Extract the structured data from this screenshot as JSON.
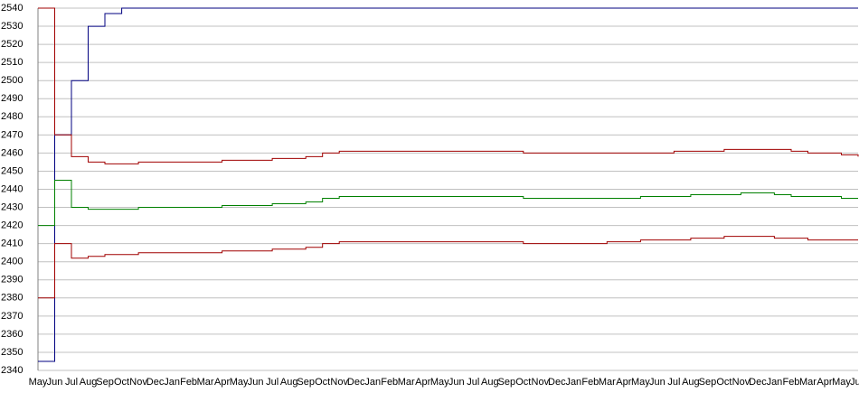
{
  "chart_data": {
    "type": "line",
    "categories": [
      "May",
      "Jun",
      "Jul",
      "Aug",
      "Sep",
      "Oct",
      "Nov",
      "Dec",
      "Jan",
      "Feb",
      "Mar",
      "Apr",
      "May",
      "Jun",
      "Jul",
      "Aug",
      "Sep",
      "Oct",
      "Nov",
      "Dec",
      "Jan",
      "Feb",
      "Mar",
      "Apr",
      "May",
      "Jun",
      "Jul",
      "Aug",
      "Sep",
      "Oct",
      "Nov",
      "Dec",
      "Jan",
      "Feb",
      "Mar",
      "Apr",
      "May",
      "Jun",
      "Jul",
      "Aug",
      "Sep",
      "Oct",
      "Nov",
      "Dec",
      "Jan",
      "Feb",
      "Mar",
      "Apr",
      "May",
      "Jun"
    ],
    "series": [
      {
        "color": "#000080",
        "values": [
          2345,
          2470,
          2500,
          2530,
          2537,
          2540,
          2540,
          2540,
          2540,
          2540,
          2540,
          2540,
          2540,
          2540,
          2540,
          2540,
          2540,
          2540,
          2540,
          2540,
          2540,
          2540,
          2540,
          2540,
          2540,
          2540,
          2540,
          2540,
          2540,
          2540,
          2540,
          2540,
          2540,
          2540,
          2540,
          2540,
          2540,
          2540,
          2540,
          2540,
          2540,
          2540,
          2540,
          2540,
          2540,
          2540,
          2540,
          2540,
          2540,
          2540
        ]
      },
      {
        "color": "#a00000",
        "values": [
          2540,
          2470,
          2458,
          2455,
          2454,
          2454,
          2455,
          2455,
          2455,
          2455,
          2455,
          2456,
          2456,
          2456,
          2457,
          2457,
          2458,
          2460,
          2461,
          2461,
          2461,
          2461,
          2461,
          2461,
          2461,
          2461,
          2461,
          2461,
          2461,
          2460,
          2460,
          2460,
          2460,
          2460,
          2460,
          2460,
          2460,
          2460,
          2461,
          2461,
          2461,
          2462,
          2462,
          2462,
          2462,
          2461,
          2460,
          2460,
          2459,
          2458
        ]
      },
      {
        "color": "#008000",
        "values": [
          2420,
          2445,
          2430,
          2429,
          2429,
          2429,
          2430,
          2430,
          2430,
          2430,
          2430,
          2431,
          2431,
          2431,
          2432,
          2432,
          2433,
          2435,
          2436,
          2436,
          2436,
          2436,
          2436,
          2436,
          2436,
          2436,
          2436,
          2436,
          2436,
          2435,
          2435,
          2435,
          2435,
          2435,
          2435,
          2435,
          2436,
          2436,
          2436,
          2437,
          2437,
          2437,
          2438,
          2438,
          2437,
          2436,
          2436,
          2436,
          2435,
          2435
        ]
      },
      {
        "color": "#a00000",
        "values": [
          2380,
          2410,
          2402,
          2403,
          2404,
          2404,
          2405,
          2405,
          2405,
          2405,
          2405,
          2406,
          2406,
          2406,
          2407,
          2407,
          2408,
          2410,
          2411,
          2411,
          2411,
          2411,
          2411,
          2411,
          2411,
          2411,
          2411,
          2411,
          2411,
          2410,
          2410,
          2410,
          2410,
          2410,
          2411,
          2411,
          2412,
          2412,
          2412,
          2413,
          2413,
          2414,
          2414,
          2414,
          2413,
          2413,
          2412,
          2412,
          2412,
          2412
        ]
      }
    ],
    "ylim": [
      2340,
      2540
    ],
    "yticks": [
      2340,
      2350,
      2360,
      2370,
      2380,
      2390,
      2400,
      2410,
      2420,
      2430,
      2440,
      2450,
      2460,
      2470,
      2480,
      2490,
      2500,
      2510,
      2520,
      2530,
      2540
    ],
    "grid": true
  }
}
